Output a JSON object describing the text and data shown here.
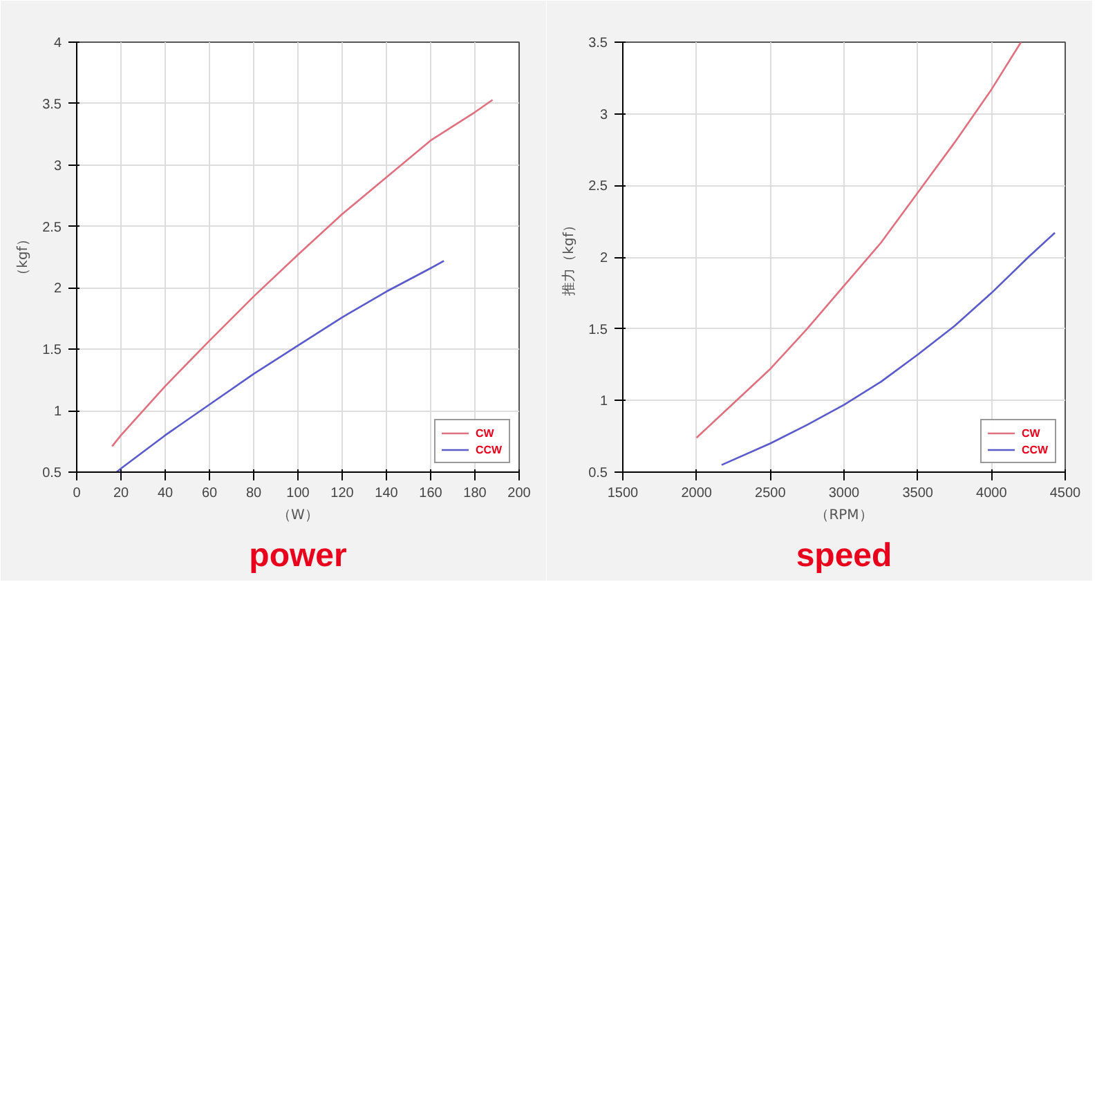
{
  "chart_data": [
    {
      "type": "line",
      "title": "power",
      "xlabel": "（W）",
      "ylabel": "（kgf）",
      "xlim": [
        0,
        200
      ],
      "xticks": [
        0,
        20,
        40,
        60,
        80,
        100,
        120,
        140,
        160,
        180,
        200
      ],
      "ylim": [
        0.5,
        4
      ],
      "yticks": [
        0.5,
        1,
        1.5,
        2,
        2.5,
        3,
        3.5,
        4
      ],
      "grid": true,
      "legend": "bottom right",
      "series": [
        {
          "name": "CW",
          "color": "#e07080",
          "x": [
            16,
            20,
            40,
            60,
            80,
            100,
            120,
            140,
            160,
            180,
            188
          ],
          "values": [
            0.71,
            0.8,
            1.2,
            1.57,
            1.93,
            2.27,
            2.6,
            2.9,
            3.2,
            3.43,
            3.53
          ]
        },
        {
          "name": "CCW",
          "color": "#5a5acc",
          "x": [
            18,
            20,
            40,
            60,
            80,
            100,
            120,
            140,
            160,
            166
          ],
          "values": [
            0.5,
            0.53,
            0.8,
            1.05,
            1.3,
            1.53,
            1.76,
            1.97,
            2.16,
            2.22
          ]
        }
      ]
    },
    {
      "type": "line",
      "title": "speed",
      "xlabel": "（RPM）",
      "ylabel": "推力（kgf）",
      "xlim": [
        1500,
        4500
      ],
      "xticks": [
        1500,
        2000,
        2500,
        3000,
        3500,
        4000,
        4500
      ],
      "ylim": [
        0.5,
        3.5
      ],
      "yticks": [
        0.5,
        1,
        1.5,
        2,
        2.5,
        3,
        3.5
      ],
      "grid": true,
      "legend": "bottom right",
      "series": [
        {
          "name": "CW",
          "color": "#e07080",
          "x": [
            2000,
            2250,
            2500,
            2750,
            3000,
            3250,
            3500,
            3750,
            4000,
            4200
          ],
          "values": [
            0.74,
            0.98,
            1.22,
            1.5,
            1.8,
            2.1,
            2.45,
            2.8,
            3.17,
            3.5
          ]
        },
        {
          "name": "CCW",
          "color": "#5a5acc",
          "x": [
            2170,
            2500,
            2750,
            3000,
            3250,
            3500,
            3750,
            4000,
            4250,
            4430
          ],
          "values": [
            0.55,
            0.7,
            0.83,
            0.97,
            1.13,
            1.32,
            1.52,
            1.75,
            2.0,
            2.17
          ]
        }
      ]
    }
  ]
}
